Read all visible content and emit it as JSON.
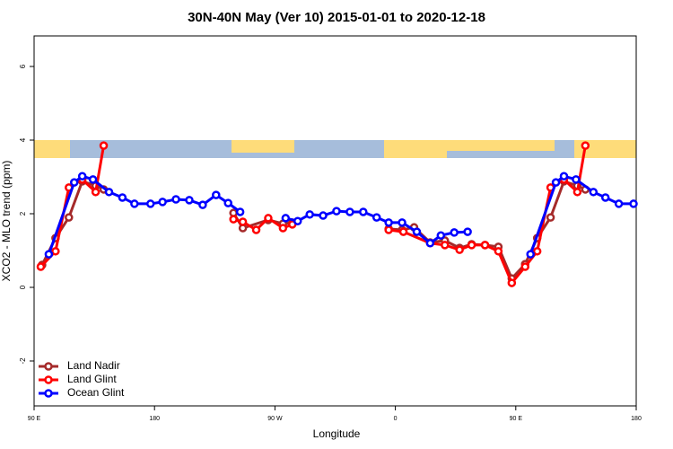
{
  "chart_data": {
    "type": "line",
    "title": "30N-40N May (Ver 10)   2015-01-01 to 2020-12-18",
    "xlabel": "Longitude",
    "ylabel": "XCO2 - MLO trend (ppm)",
    "xlim": [
      90,
      540
    ],
    "ylim": [
      -3.22,
      6.83
    ],
    "xticks": [
      {
        "value": 90,
        "label": "90 E"
      },
      180,
      {
        "value": 270,
        "label": "90 W"
      },
      {
        "value": 360,
        "label": "0"
      },
      {
        "value": 450,
        "label": "90 E"
      },
      {
        "value": 540,
        "label": "180"
      }
    ],
    "yticks": [
      -2,
      0,
      2,
      4,
      6
    ],
    "legend": "bottom-left",
    "series": [
      {
        "name": "Land Nadir",
        "color": "#a52a2a",
        "x": [
          96,
          106,
          116,
          126,
          136,
          142,
          null,
          239,
          246,
          265,
          276,
          283,
          null,
          355,
          365,
          374,
          386,
          397,
          408,
          417,
          427,
          437,
          447,
          457,
          466,
          476,
          486,
          496,
          502
        ],
        "values": [
          0.61,
          1.34,
          1.9,
          2.88,
          2.76,
          2.66,
          null,
          2.02,
          1.61,
          1.83,
          1.73,
          1.76,
          null,
          1.59,
          1.56,
          1.63,
          1.22,
          1.27,
          1.07,
          1.17,
          1.15,
          1.1,
          0.24,
          0.63,
          1.34,
          1.9,
          2.88,
          2.76,
          2.66
        ]
      },
      {
        "name": "Land Glint",
        "color": "#ff0000",
        "x": [
          95,
          106,
          116,
          126,
          136,
          142,
          null,
          239,
          246,
          256,
          265,
          276,
          283,
          null,
          355,
          366,
          386,
          397,
          408,
          417,
          427,
          437,
          447,
          457,
          466,
          476,
          486,
          496,
          502
        ],
        "values": [
          0.56,
          0.98,
          2.71,
          2.93,
          2.59,
          3.85,
          null,
          1.85,
          1.78,
          1.56,
          1.88,
          1.61,
          1.71,
          null,
          1.56,
          1.51,
          1.2,
          1.15,
          1.02,
          1.15,
          1.15,
          0.98,
          0.12,
          0.56,
          0.98,
          2.71,
          2.93,
          2.59,
          3.85
        ]
      },
      {
        "name": "Ocean Glint",
        "color": "#0000ff",
        "x": [
          101,
          120,
          126,
          134,
          146,
          156,
          165,
          177,
          186,
          196,
          206,
          216,
          226,
          235,
          244,
          null,
          278,
          287,
          296,
          306,
          316,
          326,
          336,
          346,
          355,
          365,
          376,
          386,
          394,
          404,
          414,
          null,
          461,
          480,
          486,
          495,
          508,
          517,
          527,
          538
        ],
        "values": [
          0.9,
          2.85,
          3.02,
          2.93,
          2.59,
          2.44,
          2.27,
          2.27,
          2.32,
          2.39,
          2.37,
          2.24,
          2.51,
          2.29,
          2.05,
          null,
          1.88,
          1.8,
          1.98,
          1.95,
          2.07,
          2.05,
          2.05,
          1.9,
          1.76,
          1.76,
          1.51,
          1.2,
          1.41,
          1.49,
          1.51,
          null,
          0.9,
          2.85,
          3.02,
          2.93,
          2.59,
          2.44,
          2.27,
          2.27
        ]
      }
    ]
  }
}
